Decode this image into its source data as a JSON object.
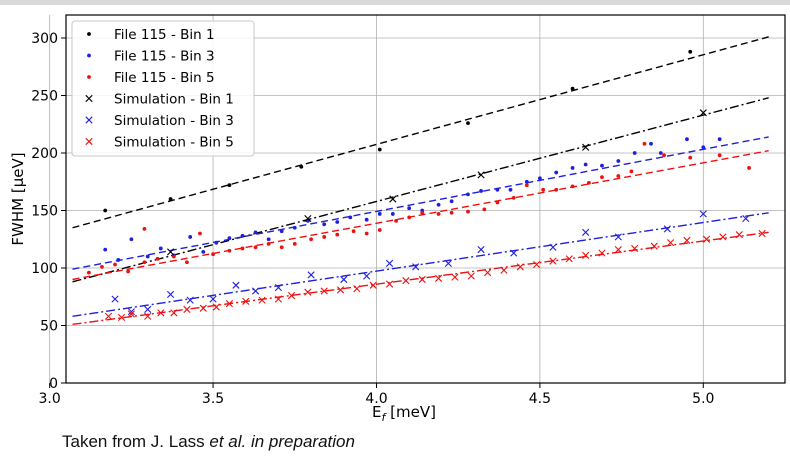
{
  "caption": {
    "prefix": "Taken from J. Lass ",
    "italic": "et al. in preparation"
  },
  "chart_data": {
    "type": "scatter",
    "xlabel_main": "E",
    "xlabel_sub": "f",
    "xlabel_rest": " [meV]",
    "ylabel": "FWHM [μeV]",
    "xlim": [
      3.05,
      5.25
    ],
    "ylim": [
      0,
      320
    ],
    "xticks": [
      3.0,
      3.5,
      4.0,
      4.5,
      5.0
    ],
    "xtick_labels": [
      "3.0",
      "3.5",
      "4.0",
      "4.5",
      "5.0"
    ],
    "yticks": [
      0,
      50,
      100,
      150,
      200,
      250,
      300
    ],
    "grid": true,
    "legend_position": "top-left",
    "series": [
      {
        "name": "File 115 - Bin 1",
        "marker": "dot",
        "color": "#000000",
        "points": [
          [
            3.17,
            150
          ],
          [
            3.37,
            160
          ],
          [
            3.55,
            172
          ],
          [
            3.77,
            188
          ],
          [
            4.01,
            203
          ],
          [
            4.28,
            226
          ],
          [
            4.6,
            256
          ],
          [
            4.96,
            288
          ]
        ]
      },
      {
        "name": "File 115 - Bin 3",
        "marker": "dot",
        "color": "#1f1fdd",
        "points": [
          [
            3.17,
            116
          ],
          [
            3.21,
            107
          ],
          [
            3.25,
            125
          ],
          [
            3.3,
            110
          ],
          [
            3.34,
            117
          ],
          [
            3.38,
            111
          ],
          [
            3.43,
            127
          ],
          [
            3.47,
            114
          ],
          [
            3.51,
            122
          ],
          [
            3.55,
            126
          ],
          [
            3.59,
            128
          ],
          [
            3.63,
            131
          ],
          [
            3.67,
            125
          ],
          [
            3.71,
            132
          ],
          [
            3.75,
            135
          ],
          [
            3.79,
            141
          ],
          [
            3.84,
            138
          ],
          [
            3.88,
            140
          ],
          [
            3.92,
            144
          ],
          [
            3.97,
            142
          ],
          [
            4.01,
            147
          ],
          [
            4.05,
            147
          ],
          [
            4.1,
            152
          ],
          [
            4.14,
            150
          ],
          [
            4.19,
            155
          ],
          [
            4.23,
            158
          ],
          [
            4.28,
            164
          ],
          [
            4.32,
            167
          ],
          [
            4.37,
            168
          ],
          [
            4.41,
            168
          ],
          [
            4.46,
            175
          ],
          [
            4.5,
            178
          ],
          [
            4.55,
            183
          ],
          [
            4.6,
            187
          ],
          [
            4.64,
            190
          ],
          [
            4.69,
            189
          ],
          [
            4.74,
            193
          ],
          [
            4.79,
            200
          ],
          [
            4.84,
            208
          ],
          [
            4.87,
            200
          ],
          [
            4.95,
            212
          ],
          [
            5.0,
            205
          ],
          [
            5.05,
            212
          ]
        ]
      },
      {
        "name": "File 115 - Bin 5",
        "marker": "dot",
        "color": "#ee1111",
        "points": [
          [
            3.12,
            96
          ],
          [
            3.16,
            101
          ],
          [
            3.2,
            103
          ],
          [
            3.24,
            97
          ],
          [
            3.29,
            134
          ],
          [
            3.29,
            105
          ],
          [
            3.33,
            108
          ],
          [
            3.38,
            110
          ],
          [
            3.42,
            105
          ],
          [
            3.46,
            130
          ],
          [
            3.5,
            112
          ],
          [
            3.55,
            115
          ],
          [
            3.59,
            117
          ],
          [
            3.63,
            118
          ],
          [
            3.67,
            121
          ],
          [
            3.71,
            118
          ],
          [
            3.75,
            121
          ],
          [
            3.8,
            125
          ],
          [
            3.84,
            127
          ],
          [
            3.88,
            129
          ],
          [
            3.93,
            132
          ],
          [
            3.97,
            130
          ],
          [
            4.01,
            133
          ],
          [
            4.06,
            141
          ],
          [
            4.1,
            144
          ],
          [
            4.14,
            148
          ],
          [
            4.19,
            147
          ],
          [
            4.23,
            148
          ],
          [
            4.28,
            149
          ],
          [
            4.33,
            151
          ],
          [
            4.37,
            157
          ],
          [
            4.42,
            161
          ],
          [
            4.46,
            172
          ],
          [
            4.51,
            168
          ],
          [
            4.55,
            168
          ],
          [
            4.6,
            171
          ],
          [
            4.65,
            174
          ],
          [
            4.69,
            179
          ],
          [
            4.74,
            180
          ],
          [
            4.78,
            184
          ],
          [
            4.82,
            208
          ],
          [
            4.88,
            198
          ],
          [
            4.96,
            196
          ],
          [
            5.05,
            198
          ],
          [
            5.14,
            187
          ]
        ]
      },
      {
        "name": "Simulation - Bin 1",
        "marker": "x",
        "color": "#000000",
        "points": [
          [
            3.37,
            114
          ],
          [
            3.79,
            143
          ],
          [
            4.05,
            160
          ],
          [
            4.32,
            181
          ],
          [
            4.64,
            205
          ],
          [
            5.0,
            235
          ]
        ]
      },
      {
        "name": "Simulation - Bin 3",
        "marker": "x",
        "color": "#1f1fdd",
        "points": [
          [
            3.2,
            73
          ],
          [
            3.25,
            62
          ],
          [
            3.3,
            64
          ],
          [
            3.37,
            77
          ],
          [
            3.43,
            72
          ],
          [
            3.5,
            73
          ],
          [
            3.57,
            85
          ],
          [
            3.63,
            80
          ],
          [
            3.7,
            83
          ],
          [
            3.8,
            94
          ],
          [
            3.9,
            90
          ],
          [
            3.97,
            93
          ],
          [
            4.04,
            104
          ],
          [
            4.12,
            101
          ],
          [
            4.22,
            104
          ],
          [
            4.32,
            116
          ],
          [
            4.42,
            113
          ],
          [
            4.54,
            118
          ],
          [
            4.64,
            131
          ],
          [
            4.74,
            127
          ],
          [
            4.89,
            134
          ],
          [
            5.0,
            147
          ],
          [
            5.13,
            143
          ]
        ]
      },
      {
        "name": "Simulation - Bin 5",
        "marker": "x",
        "color": "#ee1111",
        "points": [
          [
            3.18,
            58
          ],
          [
            3.22,
            57
          ],
          [
            3.25,
            60
          ],
          [
            3.3,
            58
          ],
          [
            3.34,
            61
          ],
          [
            3.38,
            61
          ],
          [
            3.42,
            64
          ],
          [
            3.47,
            65
          ],
          [
            3.51,
            66
          ],
          [
            3.55,
            69
          ],
          [
            3.6,
            71
          ],
          [
            3.65,
            72
          ],
          [
            3.7,
            73
          ],
          [
            3.74,
            76
          ],
          [
            3.79,
            79
          ],
          [
            3.84,
            80
          ],
          [
            3.89,
            81
          ],
          [
            3.94,
            82
          ],
          [
            3.99,
            85
          ],
          [
            4.04,
            86
          ],
          [
            4.09,
            89
          ],
          [
            4.14,
            90
          ],
          [
            4.19,
            91
          ],
          [
            4.24,
            92
          ],
          [
            4.29,
            93
          ],
          [
            4.34,
            96
          ],
          [
            4.39,
            98
          ],
          [
            4.44,
            101
          ],
          [
            4.49,
            103
          ],
          [
            4.54,
            106
          ],
          [
            4.59,
            108
          ],
          [
            4.64,
            111
          ],
          [
            4.69,
            113
          ],
          [
            4.74,
            116
          ],
          [
            4.79,
            117
          ],
          [
            4.85,
            119
          ],
          [
            4.9,
            122
          ],
          [
            4.95,
            124
          ],
          [
            5.01,
            125
          ],
          [
            5.06,
            127
          ],
          [
            5.11,
            129
          ],
          [
            5.18,
            130
          ]
        ]
      }
    ],
    "fit_lines": [
      {
        "color": "#000000",
        "style": "dashed",
        "from": [
          3.07,
          135
        ],
        "to": [
          5.2,
          301
        ]
      },
      {
        "color": "#000000",
        "style": "dashdot",
        "from": [
          3.07,
          88
        ],
        "to": [
          5.2,
          248
        ]
      },
      {
        "color": "#1f1fdd",
        "style": "dashed",
        "from": [
          3.07,
          99
        ],
        "to": [
          5.2,
          214
        ]
      },
      {
        "color": "#ee1111",
        "style": "dashed",
        "from": [
          3.07,
          90
        ],
        "to": [
          5.2,
          202
        ]
      },
      {
        "color": "#1f1fdd",
        "style": "dashdot",
        "from": [
          3.07,
          58
        ],
        "to": [
          5.2,
          148
        ]
      },
      {
        "color": "#ee1111",
        "style": "dashdot",
        "from": [
          3.07,
          51
        ],
        "to": [
          5.2,
          131
        ]
      }
    ]
  }
}
